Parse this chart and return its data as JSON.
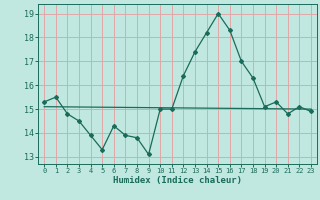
{
  "title": "",
  "xlabel": "Humidex (Indice chaleur)",
  "ylabel": "",
  "bg_color": "#c0e8e0",
  "grid_color": "#e0a8a8",
  "line_color": "#1a6b5a",
  "xlim": [
    -0.5,
    23.5
  ],
  "ylim": [
    12.7,
    19.4
  ],
  "yticks": [
    13,
    14,
    15,
    16,
    17,
    18,
    19
  ],
  "xticks": [
    0,
    1,
    2,
    3,
    4,
    5,
    6,
    7,
    8,
    9,
    10,
    11,
    12,
    13,
    14,
    15,
    16,
    17,
    18,
    19,
    20,
    21,
    22,
    23
  ],
  "main_x": [
    0,
    1,
    2,
    3,
    4,
    5,
    6,
    7,
    8,
    9,
    10,
    11,
    12,
    13,
    14,
    15,
    16,
    17,
    18,
    19,
    20,
    21,
    22,
    23
  ],
  "main_y": [
    15.3,
    15.5,
    14.8,
    14.5,
    13.9,
    13.3,
    14.3,
    13.9,
    13.8,
    13.1,
    15.0,
    15.0,
    16.4,
    17.4,
    18.2,
    19.0,
    18.3,
    17.0,
    16.3,
    15.1,
    15.3,
    14.8,
    15.1,
    14.9
  ],
  "trend_x": [
    0,
    23
  ],
  "trend_y": [
    15.1,
    15.0
  ]
}
